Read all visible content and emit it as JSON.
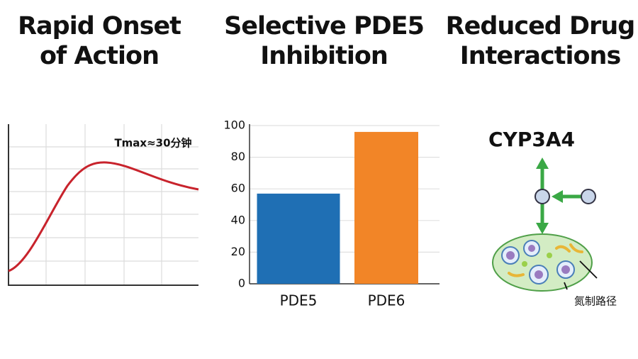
{
  "headings": [
    [
      "Rapid Onset",
      "of Action"
    ],
    [
      "Selective PDE5",
      "Inhibition"
    ],
    [
      "Reduced Drug",
      "Interactions"
    ]
  ],
  "curve_annotation": "Tmax≈30分钟",
  "chart_data": {
    "type": "bar",
    "categories": [
      "PDE5",
      "PDE6"
    ],
    "values": [
      57,
      96
    ],
    "colors": [
      "#1f6fb4",
      "#f28527"
    ],
    "ylim": [
      0,
      100
    ],
    "yticks": [
      0,
      20,
      40,
      60,
      80,
      100
    ],
    "grid": true
  },
  "diagram": {
    "enzyme": "CYP3A4",
    "label": "氮制路径"
  }
}
